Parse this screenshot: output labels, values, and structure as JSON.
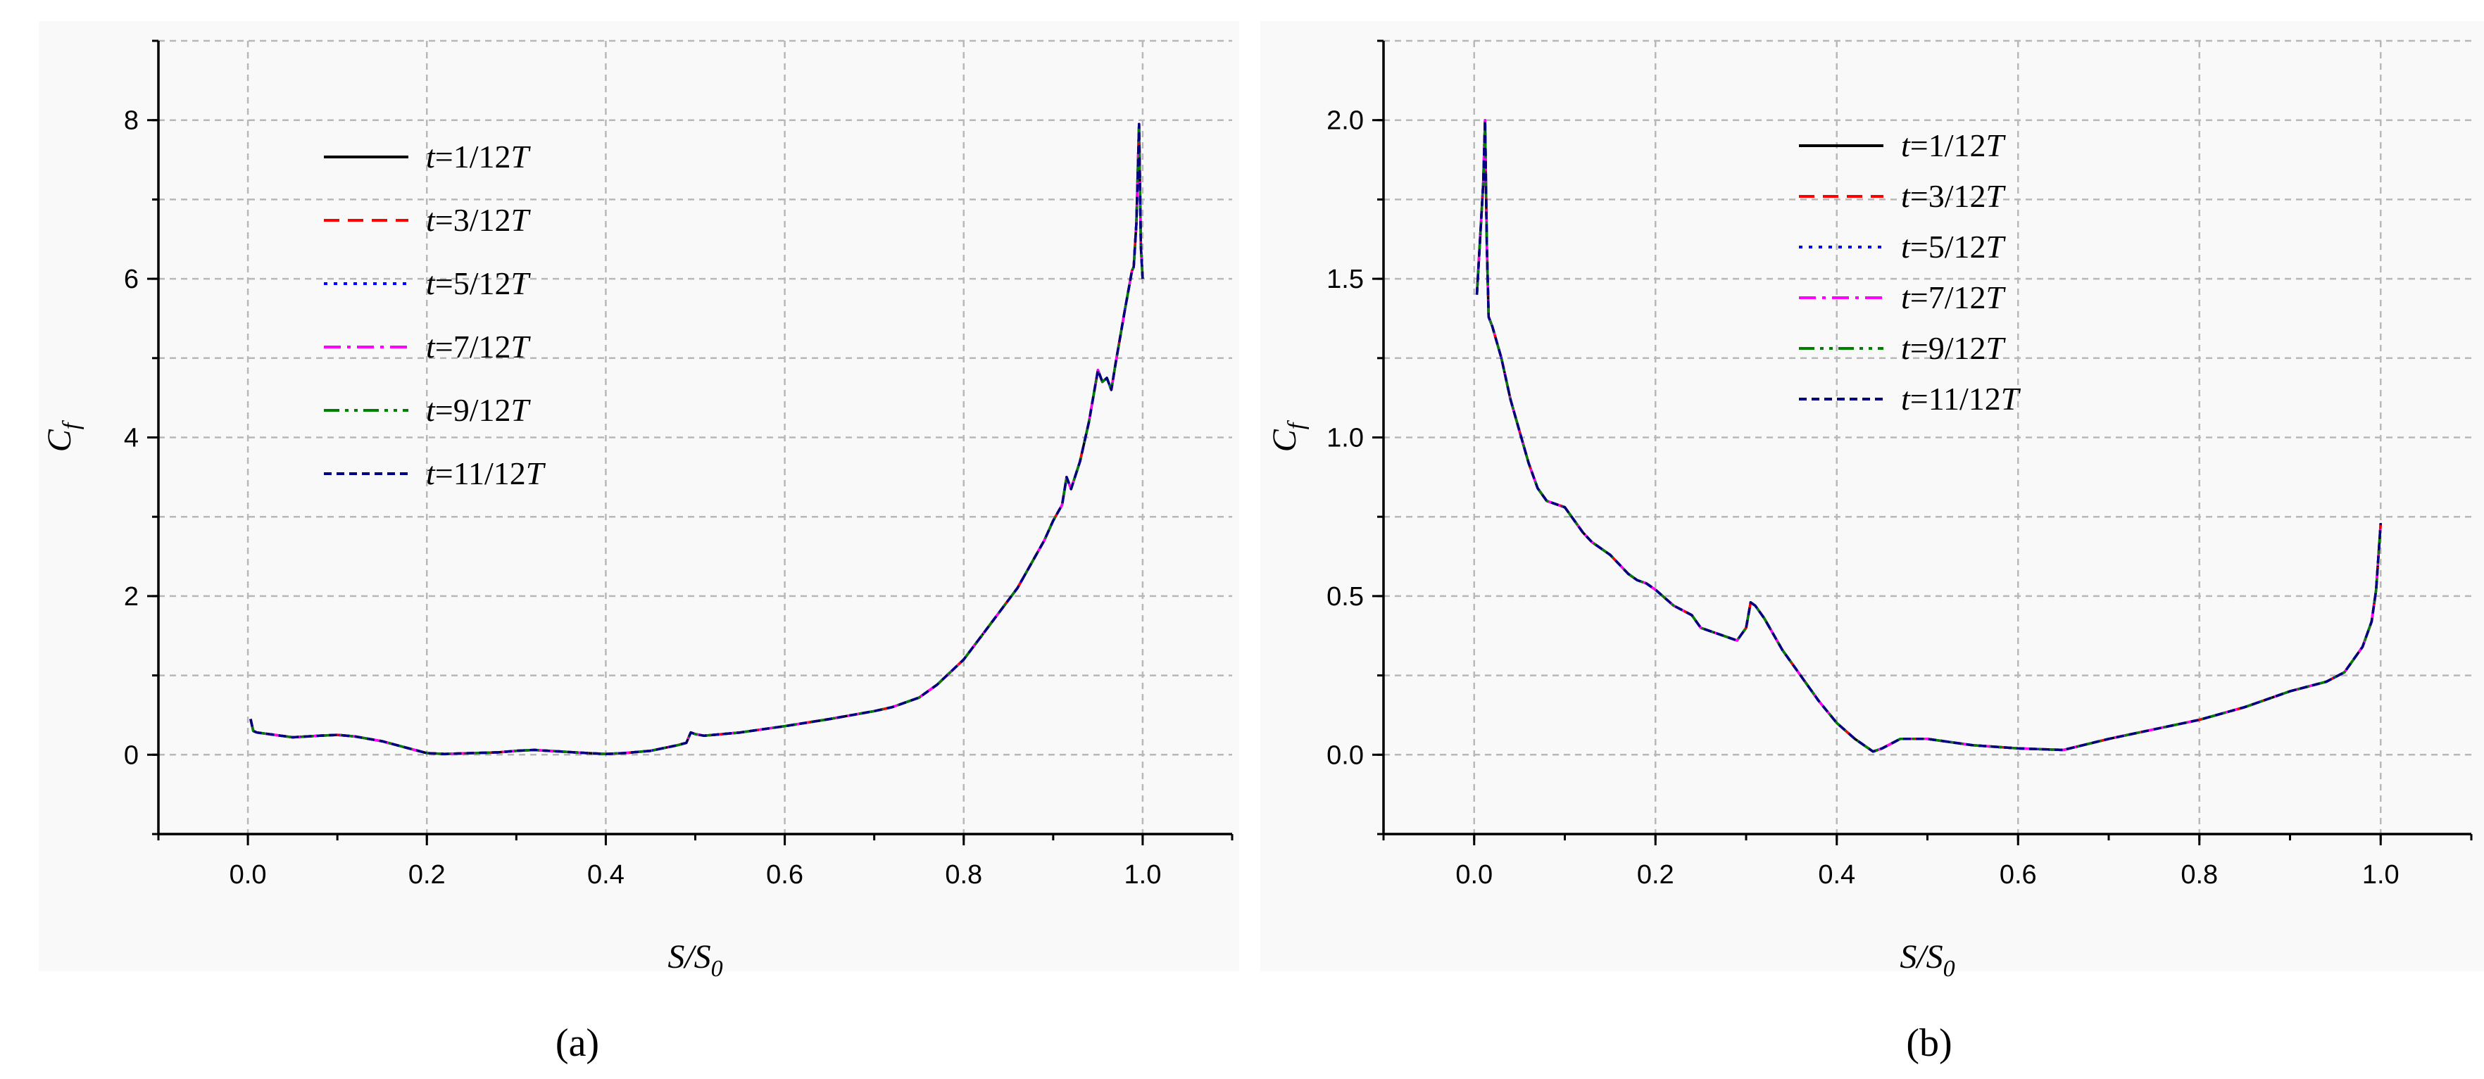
{
  "chart_data": [
    {
      "type": "line",
      "panel_label": "(a)",
      "xlabel": "S/S0",
      "ylabel": "Cf",
      "xlim": [
        -0.1,
        1.1
      ],
      "ylim": [
        -1,
        9
      ],
      "xticks": [
        "0.0",
        "0.2",
        "0.4",
        "0.6",
        "0.8",
        "1.0"
      ],
      "yticks": [
        "0",
        "2",
        "4",
        "6",
        "8"
      ],
      "grid": true,
      "legend_position": "top-left",
      "series": [
        {
          "name": "t=1/12T",
          "color": "#000000",
          "style": "solid"
        },
        {
          "name": "t=3/12T",
          "color": "#ff0000",
          "style": "dash"
        },
        {
          "name": "t=5/12T",
          "color": "#0000ff",
          "style": "dot"
        },
        {
          "name": "t=7/12T",
          "color": "#ff00ff",
          "style": "dashdot"
        },
        {
          "name": "t=9/12T",
          "color": "#008000",
          "style": "dashdotdot"
        },
        {
          "name": "t=11/12T",
          "color": "#000080",
          "style": "shortdash"
        }
      ],
      "curve": {
        "x": [
          0.003,
          0.006,
          0.01,
          0.03,
          0.05,
          0.08,
          0.1,
          0.12,
          0.15,
          0.18,
          0.2,
          0.22,
          0.25,
          0.28,
          0.3,
          0.32,
          0.35,
          0.38,
          0.4,
          0.42,
          0.45,
          0.48,
          0.49,
          0.495,
          0.5,
          0.51,
          0.55,
          0.6,
          0.65,
          0.7,
          0.72,
          0.75,
          0.77,
          0.8,
          0.82,
          0.84,
          0.86,
          0.87,
          0.88,
          0.89,
          0.9,
          0.91,
          0.915,
          0.92,
          0.93,
          0.94,
          0.95,
          0.955,
          0.96,
          0.965,
          0.97,
          0.98,
          0.988,
          0.99,
          0.993,
          0.996,
          0.998,
          1.0
        ],
        "y": [
          0.45,
          0.3,
          0.28,
          0.25,
          0.22,
          0.24,
          0.25,
          0.23,
          0.17,
          0.08,
          0.02,
          0.01,
          0.02,
          0.03,
          0.05,
          0.06,
          0.04,
          0.02,
          0.01,
          0.02,
          0.05,
          0.12,
          0.15,
          0.28,
          0.26,
          0.24,
          0.28,
          0.36,
          0.45,
          0.55,
          0.6,
          0.72,
          0.88,
          1.2,
          1.5,
          1.8,
          2.1,
          2.3,
          2.5,
          2.7,
          2.95,
          3.15,
          3.5,
          3.35,
          3.7,
          4.2,
          4.85,
          4.7,
          4.75,
          4.6,
          4.95,
          5.6,
          6.1,
          6.15,
          6.7,
          7.95,
          6.4,
          6.0
        ]
      }
    },
    {
      "type": "line",
      "panel_label": "(b)",
      "xlabel": "S/S0",
      "ylabel": "Cf",
      "xlim": [
        -0.1,
        1.1
      ],
      "ylim": [
        -0.25,
        2.25
      ],
      "xticks": [
        "0.0",
        "0.2",
        "0.4",
        "0.6",
        "0.8",
        "1.0"
      ],
      "yticks": [
        "0.0",
        "0.5",
        "1.0",
        "1.5",
        "2.0"
      ],
      "grid": true,
      "legend_position": "top-right",
      "series": [
        {
          "name": "t=1/12T",
          "color": "#000000",
          "style": "solid"
        },
        {
          "name": "t=3/12T",
          "color": "#ff0000",
          "style": "dash"
        },
        {
          "name": "t=5/12T",
          "color": "#0000ff",
          "style": "dot"
        },
        {
          "name": "t=7/12T",
          "color": "#ff00ff",
          "style": "dashdot"
        },
        {
          "name": "t=9/12T",
          "color": "#008000",
          "style": "dashdotdot"
        },
        {
          "name": "t=11/12T",
          "color": "#000080",
          "style": "shortdash"
        }
      ],
      "curve": {
        "x": [
          0.003,
          0.006,
          0.01,
          0.012,
          0.014,
          0.016,
          0.02,
          0.03,
          0.04,
          0.05,
          0.06,
          0.07,
          0.08,
          0.09,
          0.1,
          0.11,
          0.12,
          0.13,
          0.14,
          0.15,
          0.16,
          0.17,
          0.18,
          0.19,
          0.2,
          0.22,
          0.24,
          0.25,
          0.27,
          0.29,
          0.3,
          0.305,
          0.31,
          0.32,
          0.34,
          0.36,
          0.38,
          0.4,
          0.42,
          0.44,
          0.45,
          0.47,
          0.5,
          0.55,
          0.6,
          0.65,
          0.7,
          0.75,
          0.8,
          0.85,
          0.9,
          0.94,
          0.96,
          0.97,
          0.98,
          0.99,
          0.995,
          1.0
        ],
        "y": [
          1.45,
          1.6,
          1.8,
          2.0,
          1.6,
          1.38,
          1.35,
          1.25,
          1.12,
          1.02,
          0.92,
          0.84,
          0.8,
          0.79,
          0.78,
          0.74,
          0.7,
          0.67,
          0.65,
          0.63,
          0.6,
          0.57,
          0.55,
          0.54,
          0.52,
          0.47,
          0.44,
          0.4,
          0.38,
          0.36,
          0.4,
          0.48,
          0.47,
          0.43,
          0.33,
          0.25,
          0.17,
          0.1,
          0.05,
          0.01,
          0.02,
          0.05,
          0.05,
          0.03,
          0.02,
          0.015,
          0.05,
          0.08,
          0.11,
          0.15,
          0.2,
          0.23,
          0.26,
          0.3,
          0.34,
          0.42,
          0.52,
          0.73
        ]
      }
    }
  ]
}
